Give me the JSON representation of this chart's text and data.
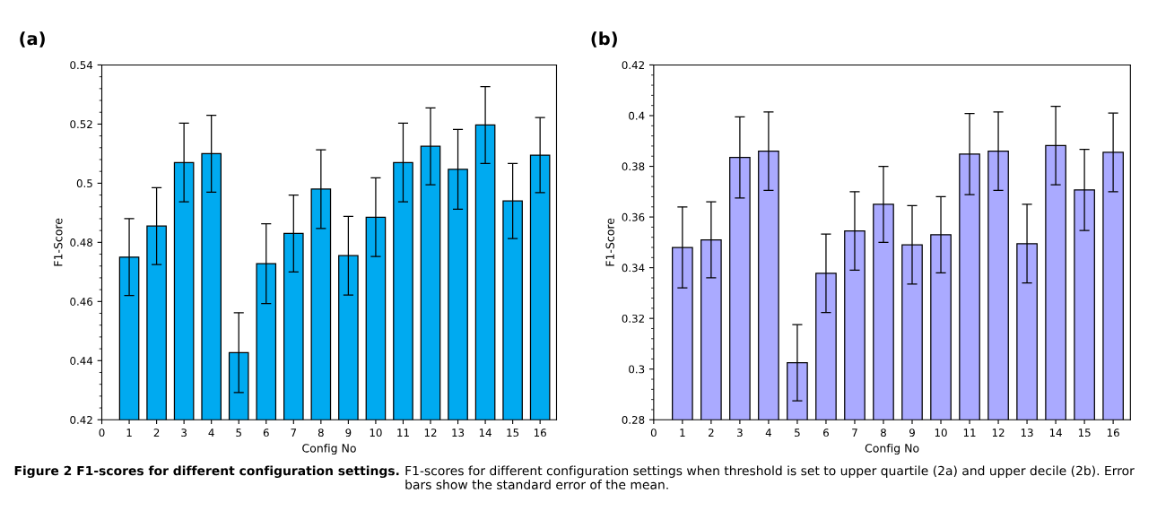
{
  "chart_data": [
    {
      "type": "bar",
      "title": "(a)",
      "xlabel": "Config No",
      "ylabel": "F1-Score",
      "color": "#00aaf0",
      "x": [
        1,
        2,
        3,
        4,
        5,
        6,
        7,
        8,
        9,
        10,
        11,
        12,
        13,
        14,
        15,
        16
      ],
      "values": [
        0.475,
        0.4855,
        0.507,
        0.51,
        0.4427,
        0.4728,
        0.483,
        0.498,
        0.4755,
        0.4885,
        0.507,
        0.5125,
        0.5047,
        0.5197,
        0.494,
        0.5095
      ],
      "errors": [
        0.013,
        0.013,
        0.0133,
        0.013,
        0.0135,
        0.0135,
        0.013,
        0.0133,
        0.0133,
        0.0133,
        0.0133,
        0.013,
        0.0135,
        0.013,
        0.0127,
        0.0127
      ],
      "xlim": [
        0,
        16.6
      ],
      "xticks": [
        0,
        1,
        2,
        3,
        4,
        5,
        6,
        7,
        8,
        9,
        10,
        11,
        12,
        13,
        14,
        15,
        16
      ],
      "ylim": [
        0.42,
        0.54
      ],
      "yticks": [
        0.42,
        0.44,
        0.46,
        0.48,
        0.5,
        0.52,
        0.54
      ],
      "grid": false,
      "legend": false
    },
    {
      "type": "bar",
      "title": "(b)",
      "xlabel": "Config No",
      "ylabel": "F1-Score",
      "color": "#aaaaff",
      "x": [
        1,
        2,
        3,
        4,
        5,
        6,
        7,
        8,
        9,
        10,
        11,
        12,
        13,
        14,
        15,
        16
      ],
      "values": [
        0.348,
        0.351,
        0.3835,
        0.386,
        0.3025,
        0.3378,
        0.3545,
        0.365,
        0.349,
        0.353,
        0.3848,
        0.386,
        0.3495,
        0.3882,
        0.3707,
        0.3855
      ],
      "errors": [
        0.016,
        0.015,
        0.016,
        0.0155,
        0.015,
        0.0155,
        0.0155,
        0.015,
        0.0155,
        0.015,
        0.016,
        0.0155,
        0.0155,
        0.0155,
        0.016,
        0.0155
      ],
      "xlim": [
        0,
        16.6
      ],
      "xticks": [
        0,
        1,
        2,
        3,
        4,
        5,
        6,
        7,
        8,
        9,
        10,
        11,
        12,
        13,
        14,
        15,
        16
      ],
      "ylim": [
        0.28,
        0.42
      ],
      "yticks": [
        0.28,
        0.3,
        0.32,
        0.34,
        0.36,
        0.38,
        0.4,
        0.42
      ],
      "grid": false,
      "legend": false,
      "annotations": [
        "Figure 2 F1-scores for different configuration settings.",
        "F1-scores for different configuration settings when threshold is set to upper quartile (2a) and upper decile (2b). Error bars show the standard error of the mean."
      ]
    }
  ]
}
